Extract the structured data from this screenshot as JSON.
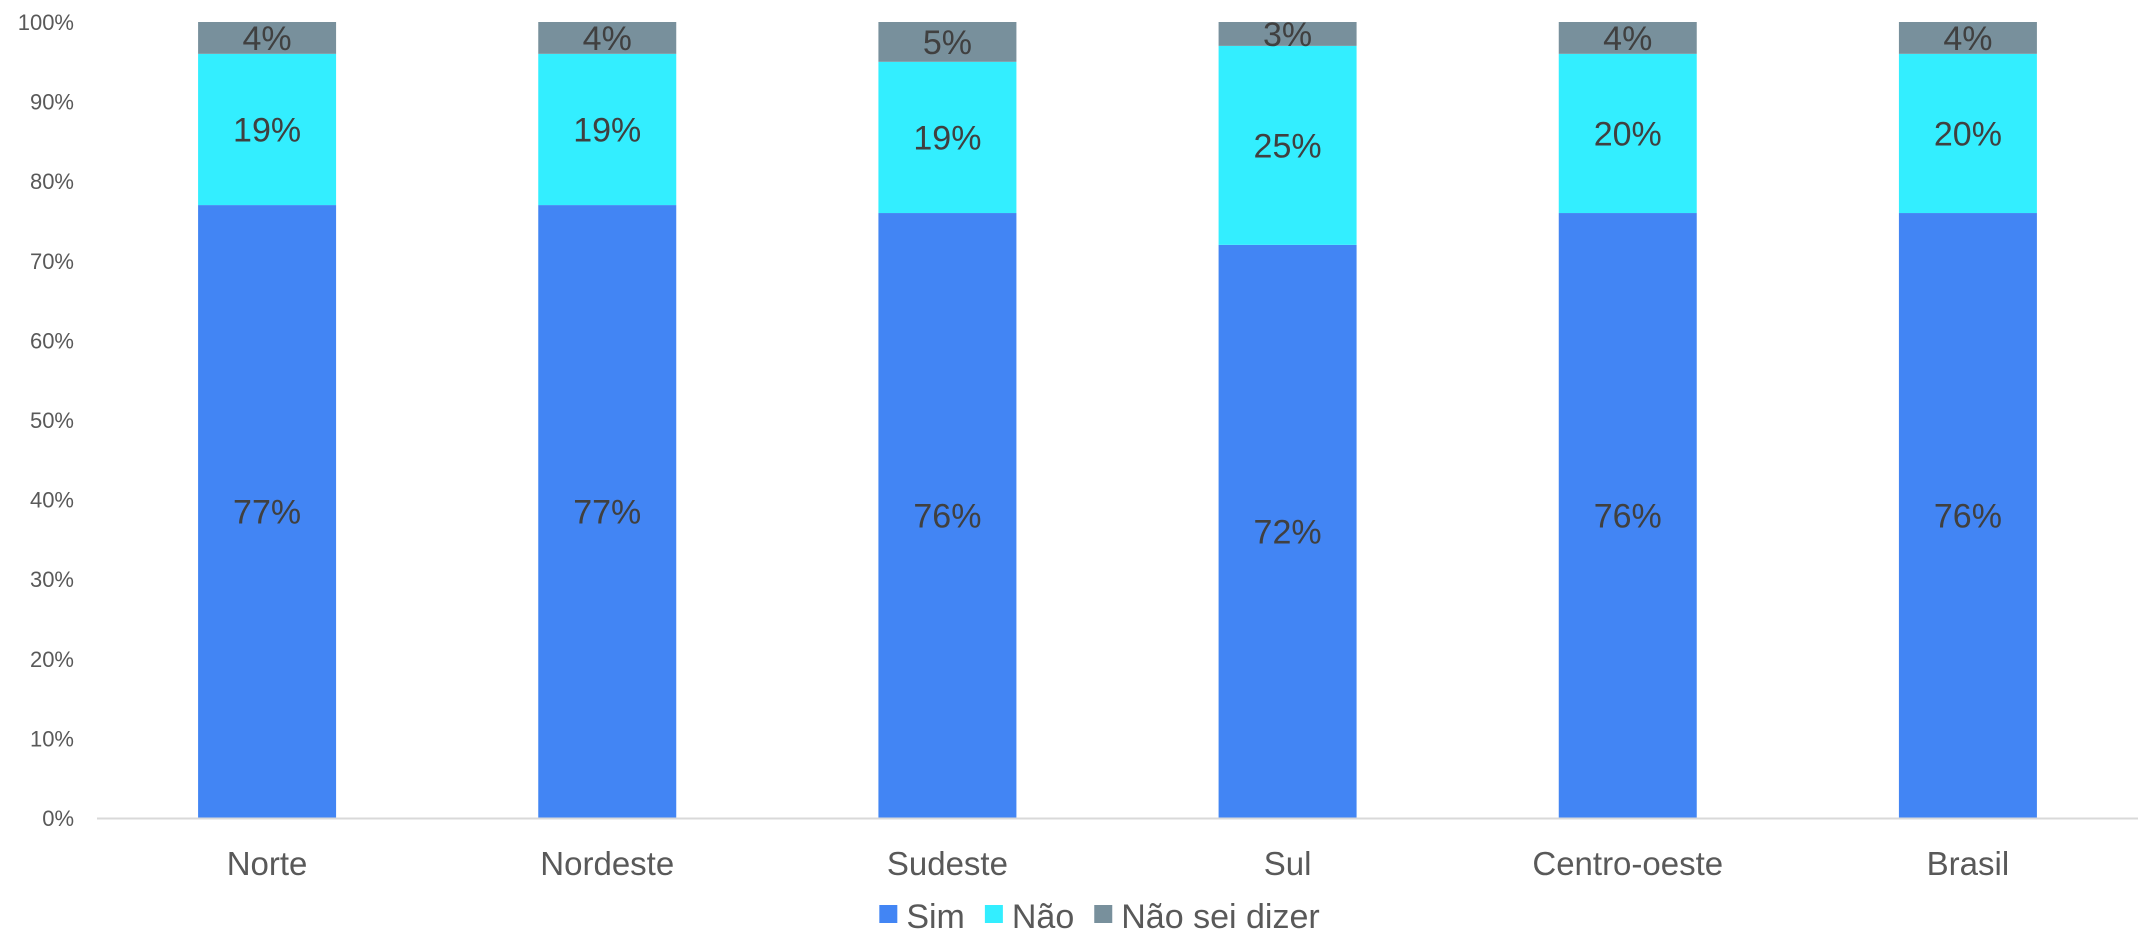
{
  "chart_data": {
    "type": "bar",
    "stacked": true,
    "percent_stacked": true,
    "categories": [
      "Norte",
      "Nordeste",
      "Sudeste",
      "Sul",
      "Centro-oeste",
      "Brasil"
    ],
    "series": [
      {
        "name": "Sim",
        "color": "#4285F4",
        "values": [
          77,
          77,
          76,
          72,
          76,
          76
        ],
        "labels": [
          "77%",
          "77%",
          "76%",
          "72%",
          "76%",
          "76%"
        ]
      },
      {
        "name": "Não",
        "color": "#33EEFF",
        "values": [
          19,
          19,
          19,
          25,
          20,
          20
        ],
        "labels": [
          "19%",
          "19%",
          "19%",
          "25%",
          "20%",
          "20%"
        ]
      },
      {
        "name": "Não sei dizer",
        "color": "#78909C",
        "values": [
          4,
          4,
          5,
          3,
          4,
          4
        ],
        "labels": [
          "4%",
          "4%",
          "5%",
          "3%",
          "4%",
          "4%"
        ]
      }
    ],
    "ylim": [
      0,
      100
    ],
    "yticks": [
      "0%",
      "10%",
      "20%",
      "30%",
      "40%",
      "50%",
      "60%",
      "70%",
      "80%",
      "90%",
      "100%"
    ],
    "grid": false,
    "legend_position": "bottom",
    "title": "",
    "xlabel": "",
    "ylabel": ""
  }
}
